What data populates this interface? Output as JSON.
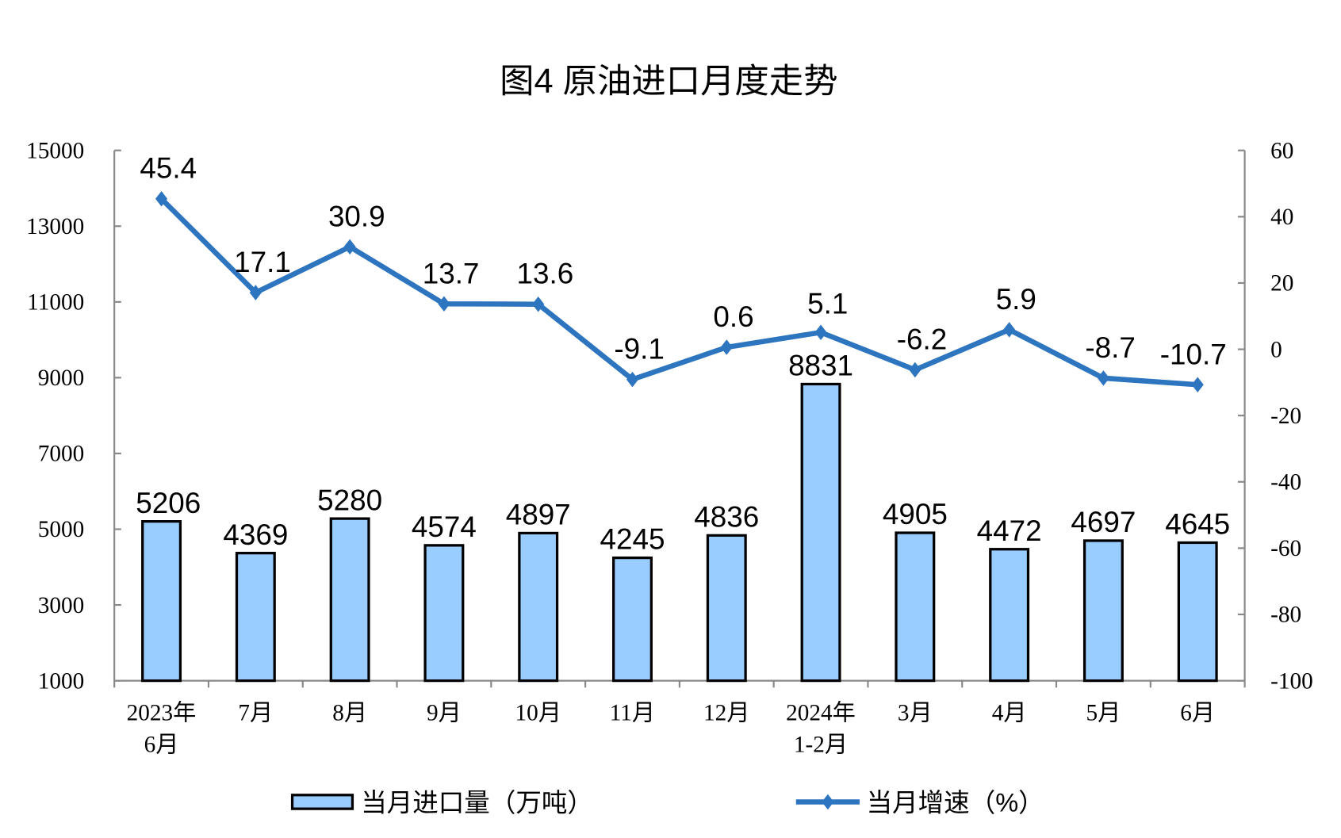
{
  "chart_data": {
    "type": "bar+line",
    "title": "图4  原油进口月度走势",
    "categories": [
      [
        "2023年",
        "6月"
      ],
      [
        "7月"
      ],
      [
        "8月"
      ],
      [
        "9月"
      ],
      [
        "10月"
      ],
      [
        "11月"
      ],
      [
        "12月"
      ],
      [
        "2024年",
        "1-2月"
      ],
      [
        "3月"
      ],
      [
        "4月"
      ],
      [
        "5月"
      ],
      [
        "6月"
      ]
    ],
    "series": [
      {
        "name": "当月进口量（万吨）",
        "type": "bar",
        "axis": "left",
        "color": "#99CCFF",
        "values": [
          5206,
          4369,
          5280,
          4574,
          4897,
          4245,
          4836,
          8831,
          4905,
          4472,
          4697,
          4645
        ]
      },
      {
        "name": "当月增速（%）",
        "type": "line",
        "axis": "right",
        "color": "#2E75C0",
        "values": [
          45.4,
          17.1,
          30.9,
          13.7,
          13.6,
          -9.1,
          0.6,
          5.1,
          -6.2,
          5.9,
          -8.7,
          -10.7
        ]
      }
    ],
    "left_axis": {
      "range": [
        1000,
        15000
      ],
      "ticks": [
        1000,
        3000,
        5000,
        7000,
        9000,
        11000,
        13000,
        15000
      ]
    },
    "right_axis": {
      "range": [
        -100,
        60
      ],
      "ticks": [
        -100,
        -80,
        -60,
        -40,
        -20,
        0,
        20,
        40,
        60
      ]
    },
    "grid": false,
    "legend_position": "bottom"
  }
}
